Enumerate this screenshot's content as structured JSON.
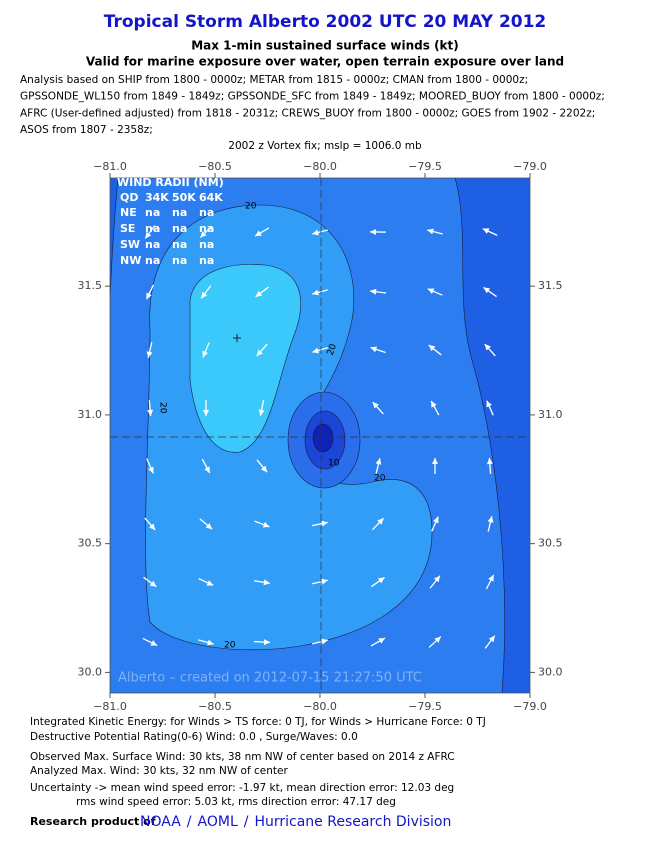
{
  "header": {
    "title": "Tropical Storm Alberto 2002 UTC 20 MAY 2012",
    "subtitle": "Max 1-min sustained surface winds (kt)",
    "subtitle2": "Valid for marine exposure over water, open terrain exposure over land",
    "analysis": [
      "Analysis based on SHIP from 1800 - 0000z; METAR from 1815 - 0000z; CMAN from 1800 - 0000z;",
      "GPSSONDE_WL150 from 1849 - 1849z; GPSSONDE_SFC from 1849 - 1849z; MOORED_BUOY from 1800 - 0000z;",
      "AFRC (User-defined adjusted) from 1818 - 2031z; CREWS_BUOY from 1800 - 0000z; GOES from 1902 - 2202z;",
      "ASOS from 1807 - 2358z;"
    ],
    "vortex_fix": "2002 z Vortex fix; mslp = 1006.0 mb"
  },
  "map": {
    "xlim": [
      -81.0,
      -79.0
    ],
    "ylim": [
      29.92,
      31.92
    ],
    "xticks": [
      {
        "value": -81.0,
        "label": "−81.0"
      },
      {
        "value": -80.5,
        "label": "−80.5"
      },
      {
        "value": -80.0,
        "label": "−80.0"
      },
      {
        "value": -79.5,
        "label": "−79.5"
      },
      {
        "value": -79.0,
        "label": "−79.0"
      }
    ],
    "yticks": [
      {
        "value": 30.0,
        "label": "30.0"
      },
      {
        "value": 30.5,
        "label": "30.5"
      },
      {
        "value": 31.0,
        "label": "31.0"
      },
      {
        "value": 31.5,
        "label": "31.5"
      }
    ],
    "contour_labels": [
      "20",
      "20",
      "20",
      "20",
      "20",
      "10"
    ],
    "watermark": "Alberto – created on 2012-07-15 21:27:50 UTC",
    "radii": {
      "title": "WIND RADII (NM)",
      "columns": [
        "QD",
        "34K",
        "50K",
        "64K"
      ],
      "rows": [
        [
          "NE",
          "na",
          "na",
          "na"
        ],
        [
          "SE",
          "na",
          "na",
          "na"
        ],
        [
          "SW",
          "na",
          "na",
          "na"
        ],
        [
          "NW",
          "na",
          "na",
          "na"
        ]
      ]
    }
  },
  "footer": [
    "Integrated Kinetic Energy: for Winds > TS force: 0 TJ, for Winds > Hurricane Force: 0 TJ",
    "Destructive Potential Rating(0-6)  Wind: 0.0 , Surge/Waves: 0.0",
    "Observed Max. Surface Wind: 30 kts, 38 nm NW of center based on 2014 z AFRC",
    "Analyzed Max. Wind: 30 kts, 32 nm  NW of center",
    "Uncertainty -> mean wind speed error:  -1.97 kt, mean direction error: 12.03 deg",
    "rms wind speed error: 5.03 kt, rms direction error: 47.17 deg"
  ],
  "credit": {
    "label": "Research product of",
    "links": [
      "NOAA",
      "AOML",
      "Hurricane Research Division"
    ],
    "separator": "/"
  }
}
